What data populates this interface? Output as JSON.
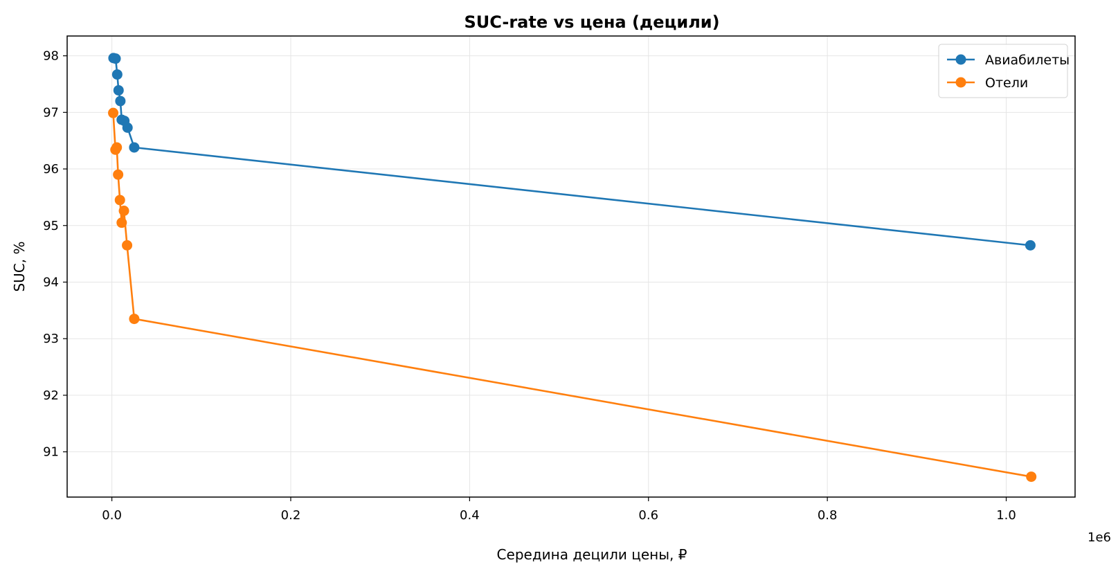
{
  "chart_data": {
    "type": "line",
    "title": "SUC-rate vs цена (децили)",
    "xlabel": "Середина децили цены, ₽",
    "ylabel": "SUC, %",
    "x_offset_label": "1e6",
    "xlim": [
      -50000,
      1077000
    ],
    "ylim": [
      90.2,
      98.35
    ],
    "x_ticks": [
      0,
      200000,
      400000,
      600000,
      800000,
      1000000
    ],
    "x_tick_labels": [
      "0.0",
      "0.2",
      "0.4",
      "0.6",
      "0.8",
      "1.0"
    ],
    "y_ticks": [
      91,
      92,
      93,
      94,
      95,
      96,
      97,
      98
    ],
    "y_tick_labels": [
      "91",
      "92",
      "93",
      "94",
      "95",
      "96",
      "97",
      "98"
    ],
    "grid": true,
    "legend_position": "top-right",
    "series": [
      {
        "name": "Авиабилеты",
        "color": "#1f77b4",
        "points": [
          [
            1800,
            97.96
          ],
          [
            4200,
            97.95
          ],
          [
            6000,
            97.67
          ],
          [
            7500,
            97.39
          ],
          [
            9500,
            97.2
          ],
          [
            11000,
            96.87
          ],
          [
            14000,
            96.85
          ],
          [
            17500,
            96.73
          ],
          [
            25000,
            96.38
          ],
          [
            1027000,
            94.65
          ]
        ]
      },
      {
        "name": "Отели",
        "color": "#ff7f0e",
        "points": [
          [
            1500,
            96.99
          ],
          [
            4000,
            96.34
          ],
          [
            5500,
            96.38
          ],
          [
            7000,
            95.9
          ],
          [
            9000,
            95.45
          ],
          [
            11000,
            95.05
          ],
          [
            13500,
            95.26
          ],
          [
            17000,
            94.65
          ],
          [
            25000,
            93.35
          ],
          [
            1028000,
            90.56
          ]
        ]
      }
    ]
  }
}
